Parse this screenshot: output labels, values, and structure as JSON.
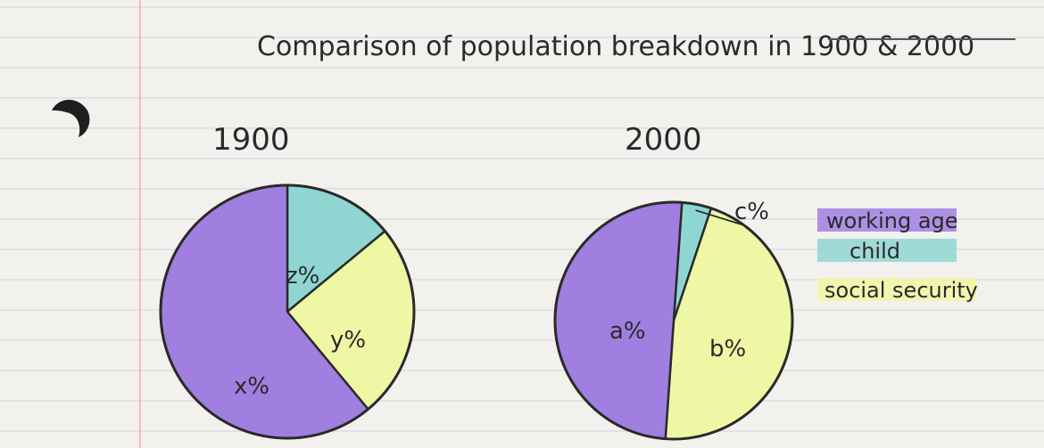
{
  "title": "Comparison of population breakdown in 1900 & 2000",
  "colors": {
    "working_age": "#a07fe0",
    "child": "#8fd6d2",
    "social_security": "#eef7a4",
    "ink": "#2a2a2a",
    "paper": "#f3f1ee",
    "rule_line": "#d9d6e3",
    "margin_line": "#f2a8b8"
  },
  "legend": [
    {
      "label": "working age",
      "series": "working_age"
    },
    {
      "label": "child",
      "series": "child"
    },
    {
      "label": "social security",
      "series": "social_security"
    }
  ],
  "chart_data": [
    {
      "type": "pie",
      "title": "1900",
      "slices": [
        {
          "series": "working_age",
          "label": "x%",
          "value": 61
        },
        {
          "series": "child",
          "label": "z%",
          "value": 14
        },
        {
          "series": "social_security",
          "label": "y%",
          "value": 25
        }
      ]
    },
    {
      "type": "pie",
      "title": "2000",
      "slices": [
        {
          "series": "working_age",
          "label": "a%",
          "value": 50
        },
        {
          "series": "child",
          "label": "c%",
          "value": 4
        },
        {
          "series": "social_security",
          "label": "b%",
          "value": 46
        }
      ]
    }
  ]
}
